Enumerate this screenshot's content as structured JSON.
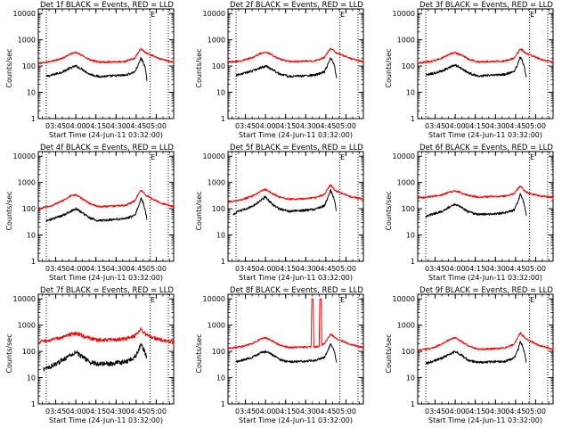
{
  "chart_data": {
    "type": "line",
    "shared": {
      "xlabel": "Start Time (24-Jun-11 03:32:00)",
      "ylabel": "Counts/sec",
      "x_ticks": [
        "03:45",
        "04:00",
        "04:15",
        "04:30",
        "04:45",
        "05:00"
      ],
      "x_tick_minutes": [
        13,
        28,
        43,
        58,
        73,
        88
      ],
      "xlim_minutes": [
        0,
        101
      ],
      "y_scale": "log",
      "ylim": [
        1,
        15000
      ],
      "y_ticks": [
        1,
        10,
        100,
        1000,
        10000
      ],
      "y_tick_labels": [
        "1",
        "10",
        "100",
        "1000",
        "10000"
      ],
      "reference_lines_minutes": [
        6,
        83.5,
        97
      ],
      "marker_label": "E",
      "marker_minute": 85.5,
      "grid": false,
      "colors": {
        "events": "#000000",
        "lld": "#ff0000",
        "axes": "#000000"
      }
    },
    "panels": [
      {
        "title": "Det 1f BLACK = Events, RED = LLD",
        "series": [
          {
            "name": "Events",
            "x": [
              6,
              10,
              18,
              24,
              28,
              33,
              38,
              45,
              55,
              65,
              72,
              75,
              76.5,
              78,
              79.5,
              81
            ],
            "y": [
              40,
              45,
              60,
              85,
              100,
              75,
              50,
              40,
              42,
              45,
              60,
              120,
              200,
              150,
              100,
              30
            ]
          },
          {
            "name": "LLD",
            "x": [
              0,
              5,
              10,
              18,
              24,
              28,
              33,
              38,
              45,
              55,
              65,
              72,
              75,
              76.5,
              78,
              80,
              85,
              92,
              101
            ],
            "y": [
              125,
              140,
              150,
              200,
              290,
              330,
              250,
              180,
              140,
              145,
              150,
              200,
              350,
              450,
              400,
              320,
              250,
              180,
              140
            ]
          }
        ]
      },
      {
        "title": "Det 2f BLACK = Events, RED = LLD",
        "series": [
          {
            "name": "Events",
            "x": [
              6,
              10,
              18,
              24,
              28,
              33,
              38,
              45,
              55,
              65,
              72,
              75,
              76.5,
              78,
              79.5,
              81
            ],
            "y": [
              45,
              50,
              65,
              85,
              100,
              75,
              52,
              40,
              42,
              45,
              60,
              130,
              220,
              160,
              100,
              35
            ]
          },
          {
            "name": "LLD",
            "x": [
              0,
              5,
              10,
              18,
              24,
              28,
              33,
              38,
              45,
              55,
              65,
              72,
              75,
              76.5,
              78,
              80,
              85,
              92,
              101
            ],
            "y": [
              140,
              150,
              160,
              210,
              300,
              350,
              260,
              190,
              150,
              150,
              160,
              210,
              370,
              480,
              420,
              330,
              260,
              190,
              145
            ]
          }
        ]
      },
      {
        "title": "Det 3f BLACK = Events, RED = LLD",
        "series": [
          {
            "name": "Events",
            "x": [
              6,
              10,
              18,
              24,
              28,
              33,
              38,
              45,
              55,
              65,
              72,
              75,
              76.5,
              78,
              79.5,
              81
            ],
            "y": [
              45,
              50,
              65,
              90,
              110,
              80,
              55,
              42,
              45,
              48,
              62,
              130,
              220,
              160,
              100,
              35
            ]
          },
          {
            "name": "LLD",
            "x": [
              0,
              5,
              10,
              18,
              24,
              28,
              33,
              38,
              45,
              55,
              65,
              72,
              75,
              76.5,
              78,
              80,
              85,
              92,
              101
            ],
            "y": [
              130,
              140,
              150,
              200,
              290,
              330,
              250,
              180,
              145,
              150,
              155,
              200,
              350,
              450,
              400,
              320,
              250,
              180,
              140
            ]
          }
        ]
      },
      {
        "title": "Det 4f BLACK = Events, RED = LLD",
        "series": [
          {
            "name": "Events",
            "x": [
              6,
              10,
              18,
              24,
              28,
              33,
              38,
              45,
              55,
              65,
              72,
              75,
              76.5,
              78,
              79.5,
              81
            ],
            "y": [
              35,
              40,
              55,
              80,
              100,
              70,
              45,
              35,
              38,
              42,
              55,
              130,
              250,
              180,
              100,
              40
            ]
          },
          {
            "name": "LLD",
            "x": [
              0,
              5,
              10,
              18,
              24,
              28,
              33,
              38,
              45,
              55,
              65,
              72,
              75,
              76.5,
              78,
              80,
              85,
              92,
              101
            ],
            "y": [
              100,
              115,
              130,
              200,
              300,
              340,
              240,
              160,
              120,
              125,
              135,
              200,
              400,
              520,
              440,
              330,
              240,
              160,
              120
            ]
          }
        ]
      },
      {
        "title": "Det 5f BLACK = Events, RED = LLD",
        "series": [
          {
            "name": "Events",
            "x": [
              4,
              8,
              14,
              20,
              25,
              28,
              33,
              38,
              45,
              55,
              65,
              72,
              75,
              76.5,
              78,
              79.5,
              81
            ],
            "y": [
              60,
              80,
              100,
              140,
              220,
              280,
              150,
              100,
              80,
              85,
              95,
              130,
              300,
              500,
              350,
              200,
              80
            ]
          },
          {
            "name": "LLD",
            "x": [
              0,
              5,
              10,
              18,
              24,
              28,
              33,
              38,
              45,
              55,
              65,
              72,
              75,
              76.5,
              78,
              80,
              85,
              92,
              101
            ],
            "y": [
              180,
              200,
              220,
              300,
              450,
              550,
              380,
              280,
              230,
              240,
              260,
              350,
              650,
              800,
              650,
              500,
              380,
              280,
              230
            ]
          }
        ]
      },
      {
        "title": "Det 6f BLACK = Events, RED = LLD",
        "series": [
          {
            "name": "Events",
            "x": [
              6,
              10,
              18,
              24,
              28,
              33,
              38,
              45,
              55,
              65,
              72,
              75,
              76.5,
              78,
              79.5,
              81
            ],
            "y": [
              50,
              60,
              80,
              120,
              150,
              110,
              75,
              60,
              62,
              70,
              90,
              200,
              350,
              250,
              140,
              60
            ]
          },
          {
            "name": "LLD",
            "x": [
              0,
              5,
              10,
              18,
              24,
              28,
              33,
              38,
              45,
              55,
              65,
              72,
              75,
              76.5,
              78,
              80,
              85,
              92,
              101
            ],
            "y": [
              260,
              270,
              290,
              340,
              430,
              480,
              390,
              320,
              280,
              290,
              300,
              380,
              600,
              720,
              600,
              450,
              360,
              300,
              270
            ]
          }
        ]
      },
      {
        "title": "Det 7f BLACK = Events, RED = LLD",
        "series": [
          {
            "name": "Events",
            "x": [
              4,
              8,
              14,
              20,
              26,
              28,
              33,
              38,
              45,
              55,
              65,
              72,
              75,
              76.5,
              78,
              79.5,
              81
            ],
            "y": [
              20,
              25,
              35,
              55,
              85,
              95,
              60,
              40,
              32,
              35,
              40,
              60,
              120,
              180,
              140,
              90,
              60
            ]
          },
          {
            "name": "LLD",
            "x": [
              0,
              5,
              10,
              18,
              24,
              28,
              33,
              38,
              45,
              55,
              65,
              72,
              75,
              76.5,
              78,
              80,
              85,
              92,
              101
            ],
            "y": [
              230,
              250,
              280,
              350,
              440,
              490,
              400,
              320,
              270,
              280,
              300,
              380,
              600,
              700,
              580,
              450,
              340,
              270,
              230
            ]
          }
        ]
      },
      {
        "title": "Det 8f BLACK = Events, RED = LLD",
        "series": [
          {
            "name": "Events",
            "x": [
              6,
              10,
              18,
              24,
              28,
              33,
              38,
              45,
              55,
              65,
              72,
              75,
              76.5,
              78,
              79.5,
              81
            ],
            "y": [
              40,
              45,
              60,
              85,
              100,
              75,
              50,
              40,
              42,
              45,
              60,
              120,
              200,
              150,
              100,
              35
            ]
          },
          {
            "name": "LLD",
            "x": [
              0,
              5,
              10,
              18,
              24,
              28,
              33,
              38,
              45,
              55,
              62,
              62.5,
              63.5,
              64,
              65,
              68,
              68.5,
              69.5,
              70,
              72,
              75,
              76.5,
              78,
              80,
              85,
              92,
              101
            ],
            "y": [
              130,
              140,
              150,
              200,
              290,
              330,
              250,
              180,
              140,
              145,
              148,
              10000,
              10000,
              150,
              150,
              155,
              10000,
              10000,
              170,
              200,
              350,
              450,
              400,
              320,
              250,
              180,
              140
            ]
          }
        ]
      },
      {
        "title": "Det 9f BLACK = Events, RED = LLD",
        "series": [
          {
            "name": "Events",
            "x": [
              6,
              10,
              18,
              24,
              28,
              33,
              38,
              45,
              55,
              65,
              72,
              75,
              76.5,
              78,
              79.5,
              81
            ],
            "y": [
              35,
              40,
              55,
              80,
              100,
              70,
              45,
              38,
              40,
              42,
              55,
              120,
              240,
              170,
              100,
              40
            ]
          },
          {
            "name": "LLD",
            "x": [
              0,
              5,
              10,
              18,
              24,
              28,
              33,
              38,
              45,
              55,
              65,
              72,
              75,
              76.5,
              78,
              80,
              85,
              92,
              101
            ],
            "y": [
              110,
              120,
              130,
              190,
              290,
              330,
              230,
              160,
              120,
              125,
              135,
              190,
              380,
              500,
              420,
              320,
              230,
              160,
              120
            ]
          }
        ]
      }
    ]
  }
}
